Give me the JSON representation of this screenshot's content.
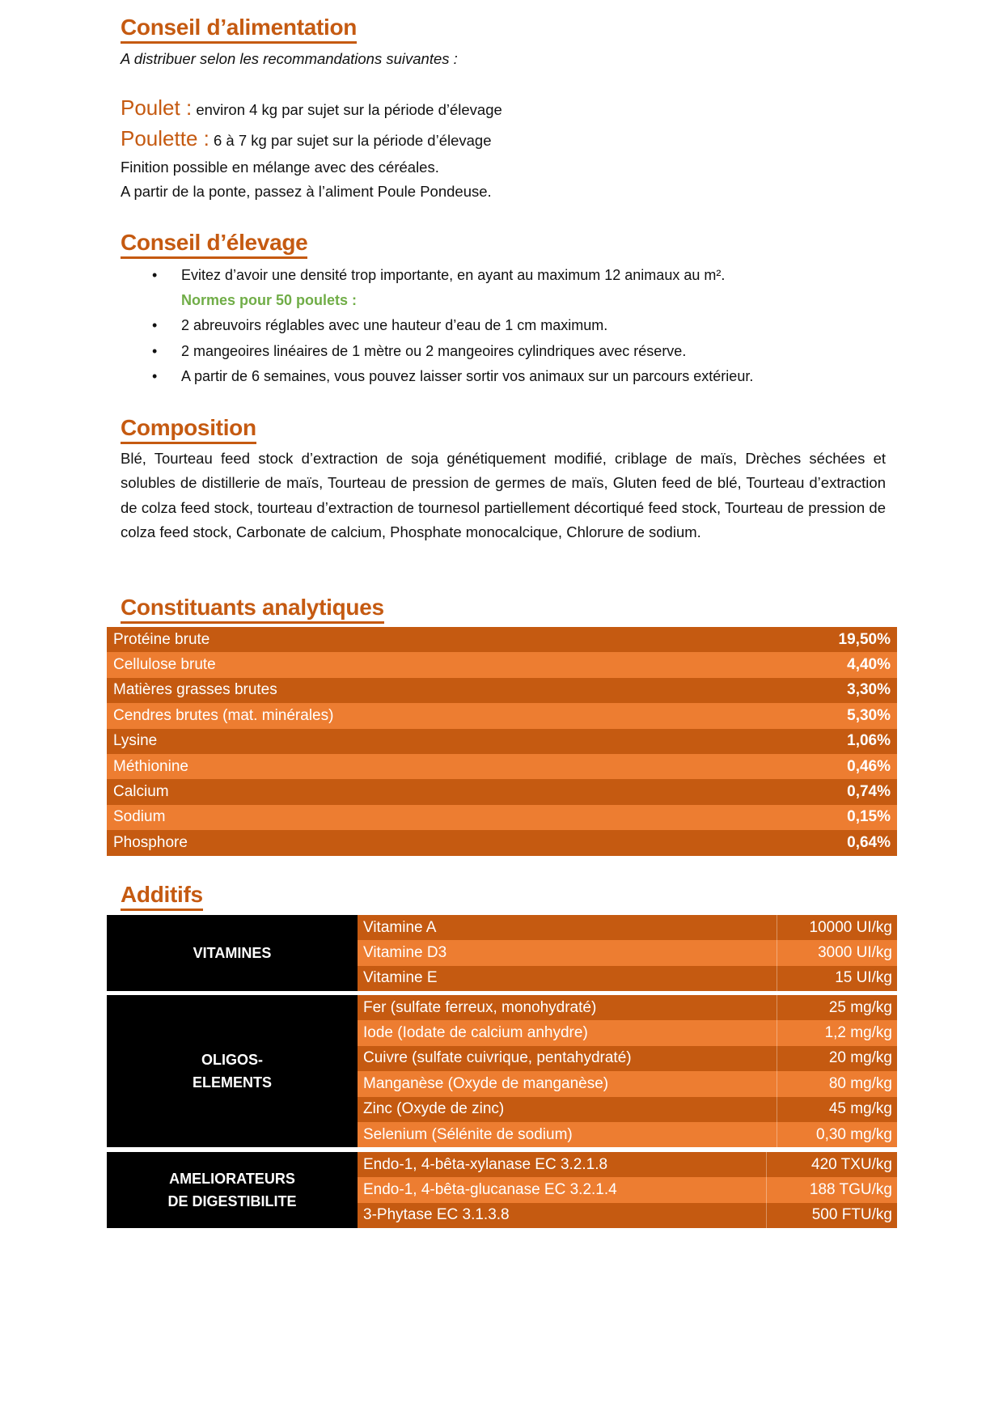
{
  "feeding": {
    "title": "Conseil d’alimentation",
    "subtitle": "A distribuer selon les recommandations suivantes :",
    "poulet_label": "Poulet :",
    "poulet_text": "environ 4 kg par sujet sur la période d’élevage",
    "poulette_label": "Poulette :",
    "poulette_text": "6 à 7 kg par sujet sur la période d’élevage",
    "line1": "Finition possible en mélange avec des céréales.",
    "line2": "A partir de la ponte, passez à l’aliment Poule Pondeuse."
  },
  "breeding": {
    "title": "Conseil d’élevage",
    "items": [
      "Evitez d’avoir une densité trop importante, en ayant au maximum 12 animaux au m².",
      "2 abreuvoirs réglables avec une hauteur d’eau de 1 cm maximum.",
      "2 mangeoires linéaires de 1 mètre ou 2 mangeoires cylindriques avec réserve.",
      "A partir de 6 semaines, vous pouvez laisser sortir vos animaux sur un parcours extérieur."
    ],
    "norms": "Normes pour 50 poulets :"
  },
  "composition": {
    "title": "Composition",
    "text": "Blé, Tourteau feed stock d’extraction de soja génétiquement modifié, criblage de maïs, Drèches séchées et solubles de distillerie de maïs, Tourteau de pression de germes de maïs, Gluten feed de blé, Tourteau d’extraction de colza feed stock, tourteau d’extraction de tournesol partiellement décortiqué feed stock, Tourteau de pression de colza feed stock, Carbonate de calcium, Phosphate monocalcique, Chlorure de sodium."
  },
  "analytics": {
    "title": "Constituants analytiques",
    "rows": [
      {
        "name": "Protéine brute",
        "value": "19,50%"
      },
      {
        "name": "Cellulose brute",
        "value": "4,40%"
      },
      {
        "name": "Matières grasses brutes",
        "value": "3,30%"
      },
      {
        "name": "Cendres brutes (mat. minérales)",
        "value": "5,30%"
      },
      {
        "name": "Lysine",
        "value": "1,06%"
      },
      {
        "name": "Méthionine",
        "value": "0,46%"
      },
      {
        "name": "Calcium",
        "value": "0,74%"
      },
      {
        "name": "Sodium",
        "value": "0,15%"
      },
      {
        "name": "Phosphore",
        "value": "0,64%"
      }
    ]
  },
  "additives": {
    "title": "Additifs",
    "groups": [
      {
        "label": "VITAMINES",
        "rows": [
          {
            "name": "Vitamine A",
            "value": "10000 UI/kg"
          },
          {
            "name": "Vitamine D3",
            "value": "3000 UI/kg"
          },
          {
            "name": "Vitamine E",
            "value": "15 UI/kg"
          }
        ]
      },
      {
        "label": "OLIGOS-\nELEMENTS",
        "rows": [
          {
            "name": "Fer (sulfate ferreux, monohydraté)",
            "value": "25 mg/kg"
          },
          {
            "name": "Iode (Iodate de calcium anhydre)",
            "value": "1,2 mg/kg"
          },
          {
            "name": "Cuivre (sulfate cuivrique, pentahydraté)",
            "value": "20 mg/kg"
          },
          {
            "name": "Manganèse (Oxyde de manganèse)",
            "value": "80 mg/kg"
          },
          {
            "name": "Zinc (Oxyde de zinc)",
            "value": "45 mg/kg"
          },
          {
            "name": "Selenium (Sélénite de sodium)",
            "value": "0,30 mg/kg"
          }
        ]
      },
      {
        "label": "AMELIORATEURS\nDE DIGESTIBILITE",
        "rows": [
          {
            "name": "Endo-1, 4-bêta-xylanase EC 3.2.1.8",
            "value": "420 TXU/kg"
          },
          {
            "name": "Endo-1, 4-bêta-glucanase EC 3.2.1.4",
            "value": "188 TGU/kg"
          },
          {
            "name": "3-Phytase EC 3.1.3.8",
            "value": "500 FTU/kg"
          }
        ]
      }
    ]
  },
  "colors": {
    "dark_orange": "#C55A11",
    "light_orange": "#ED7D31",
    "green": "#70AD47",
    "label_bg": "#000000"
  }
}
